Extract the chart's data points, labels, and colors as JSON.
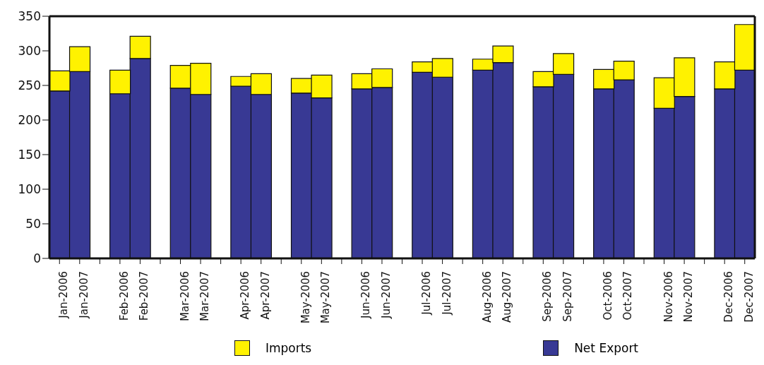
{
  "chart_data": {
    "type": "bar",
    "stacked": true,
    "categories": [
      "Jan-2006",
      "Jan-2007",
      null,
      "Feb-2006",
      "Feb-2007",
      null,
      "Mar-2006",
      "Mar-2007",
      null,
      "Apr-2006",
      "Apr-2007",
      null,
      "May-2006",
      "May-2007",
      null,
      "Jun-2006",
      "Jun-2007",
      null,
      "Jul-2006",
      "Jul-2007",
      null,
      "Aug-2006",
      "Aug-2007",
      null,
      "Sep-2006",
      "Sep-2007",
      null,
      "Oct-2006",
      "Oct-2007",
      null,
      "Nov-2006",
      "Nov-2007",
      null,
      "Dec-2006",
      "Dec-2007"
    ],
    "series": [
      {
        "name": "Net Export",
        "color": "#383994",
        "values": [
          242,
          270,
          null,
          238,
          289,
          null,
          246,
          237,
          null,
          249,
          237,
          null,
          239,
          232,
          null,
          245,
          247,
          null,
          269,
          262,
          null,
          272,
          283,
          null,
          248,
          266,
          null,
          245,
          258,
          null,
          217,
          234,
          null,
          245,
          272
        ]
      },
      {
        "name": "Imports",
        "color": "#fff200",
        "values": [
          29,
          36,
          null,
          34,
          32,
          null,
          33,
          45,
          null,
          14,
          30,
          null,
          21,
          33,
          null,
          22,
          27,
          null,
          15,
          27,
          null,
          16,
          24,
          null,
          22,
          30,
          null,
          28,
          27,
          null,
          44,
          56,
          null,
          39,
          66
        ]
      }
    ],
    "ylim": [
      0,
      350
    ],
    "yticks": [
      0,
      50,
      100,
      150,
      200,
      250,
      300,
      350
    ],
    "grid": false,
    "legend": "bottom"
  }
}
